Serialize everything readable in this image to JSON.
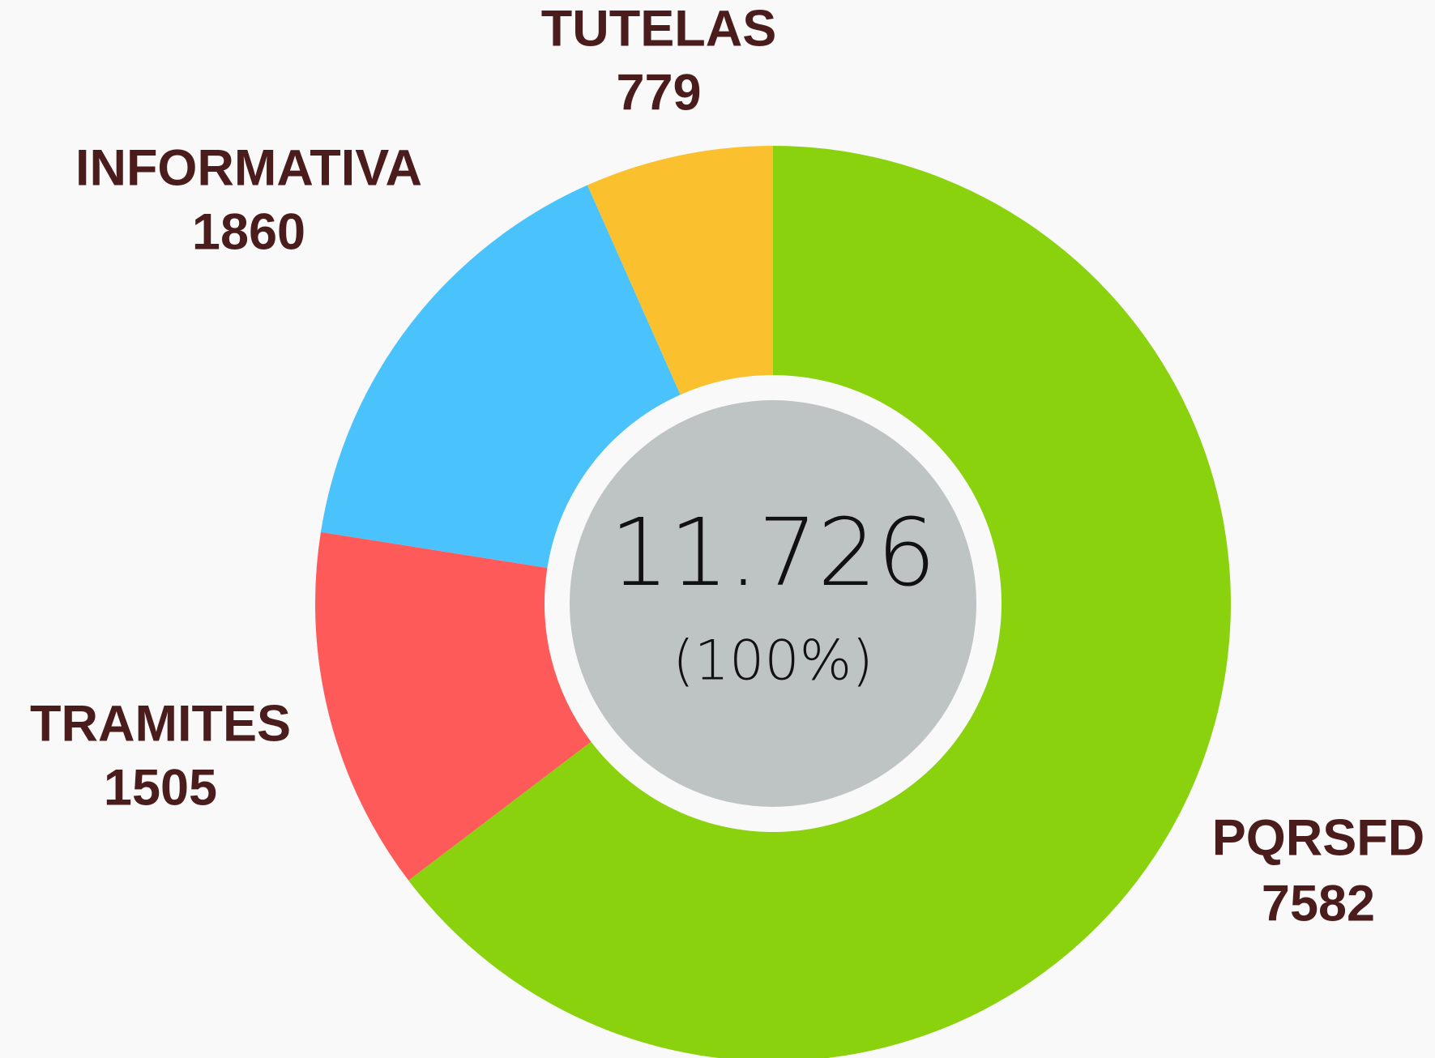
{
  "chart_data": {
    "type": "donut",
    "categories": [
      "PQRSFD",
      "TRAMITES",
      "INFORMATIVA",
      "TUTELAS"
    ],
    "values": [
      7582,
      1505,
      1860,
      779
    ],
    "colors": [
      "#8bd20e",
      "#ff5a5a",
      "#4ac2fb",
      "#fbc02d"
    ],
    "total": {
      "value": 11726,
      "label": "11.726"
    },
    "total_percent": "(100%)"
  }
}
